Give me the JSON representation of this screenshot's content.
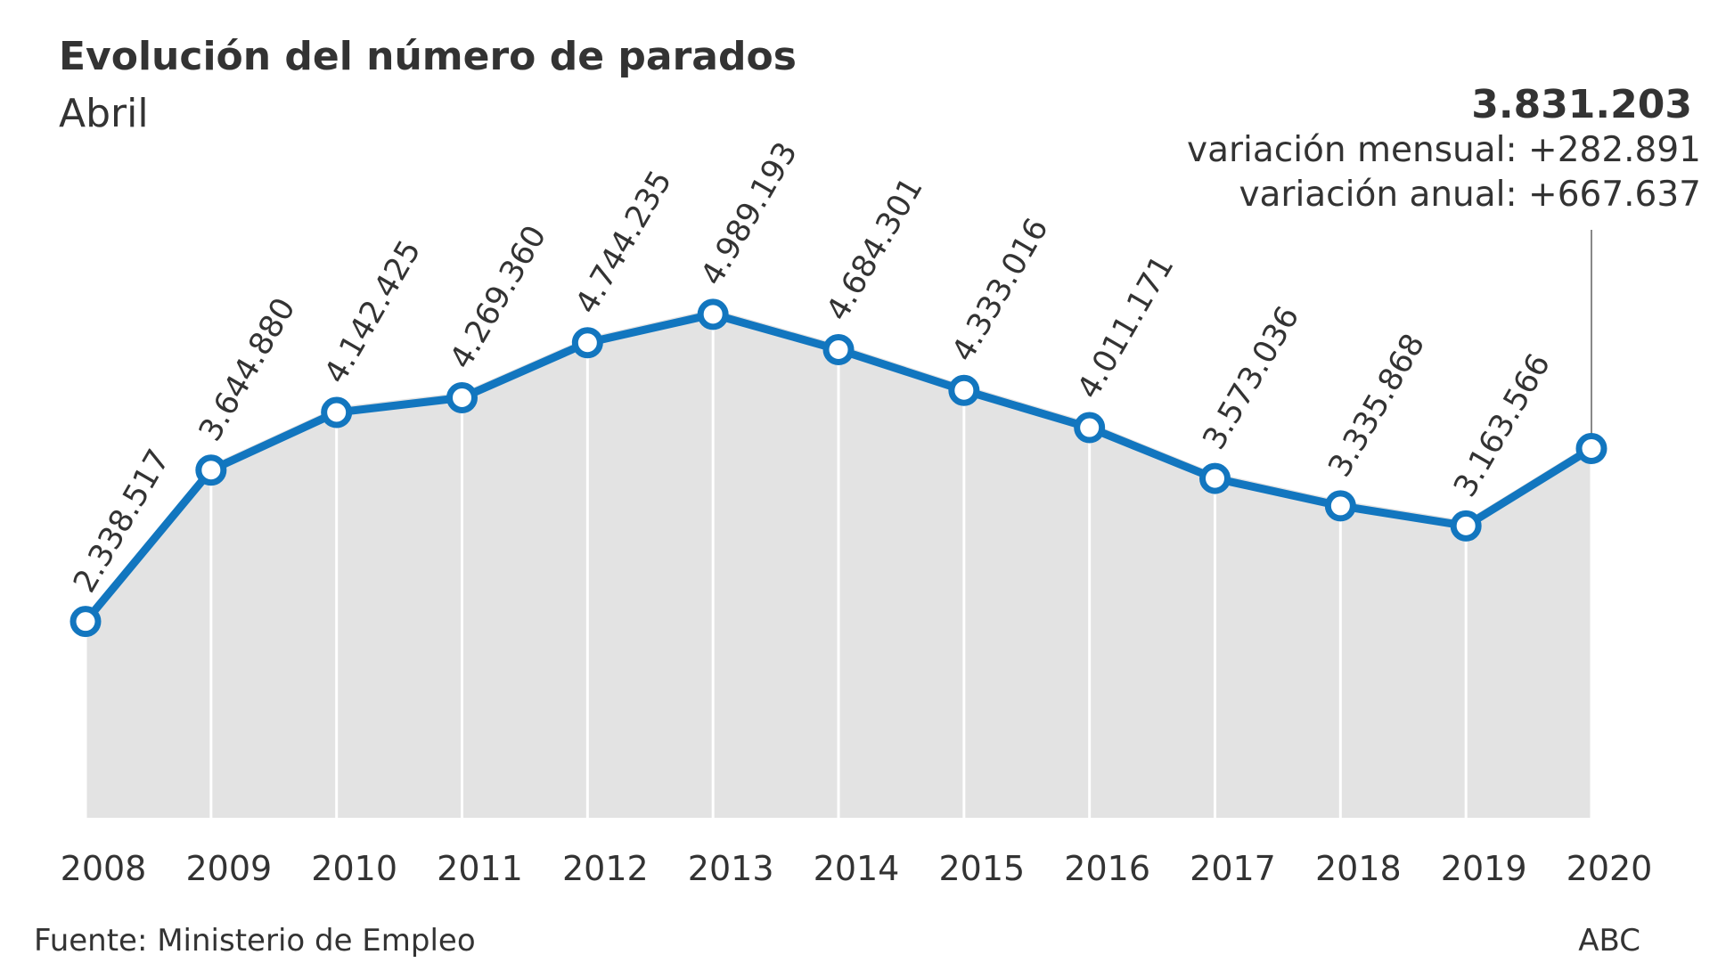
{
  "header": {
    "title": "Evolución del número de parados",
    "subtitle": "Abril"
  },
  "callout": {
    "value": "3.831.203",
    "monthly": "variación mensual: +282.891",
    "annual": "variación anual: +667.637"
  },
  "footer": {
    "source": "Fuente: Ministerio de Empleo",
    "credit": "ABC"
  },
  "colors": {
    "line": "#1276bf",
    "area": "#e3e3e3",
    "text": "#333333"
  },
  "chart_data": {
    "type": "line",
    "title": "Evolución del número de parados",
    "subtitle": "Abril",
    "x": [
      "2008",
      "2009",
      "2010",
      "2011",
      "2012",
      "2013",
      "2014",
      "2015",
      "2016",
      "2017",
      "2018",
      "2019",
      "2020"
    ],
    "values": [
      2338517,
      3644880,
      4142425,
      4269360,
      4744235,
      4989193,
      4684301,
      4333016,
      4011171,
      3573036,
      3335868,
      3163566,
      3831203
    ],
    "labels": [
      "2.338.517",
      "3.644.880",
      "4.142.425",
      "4.269.360",
      "4.744.235",
      "4.989.193",
      "4.684.301",
      "4.333.016",
      "4.011.171",
      "3.573.036",
      "3.335.868",
      "3.163.566",
      ""
    ],
    "area_fill": true,
    "grid": false,
    "legend": "none"
  }
}
